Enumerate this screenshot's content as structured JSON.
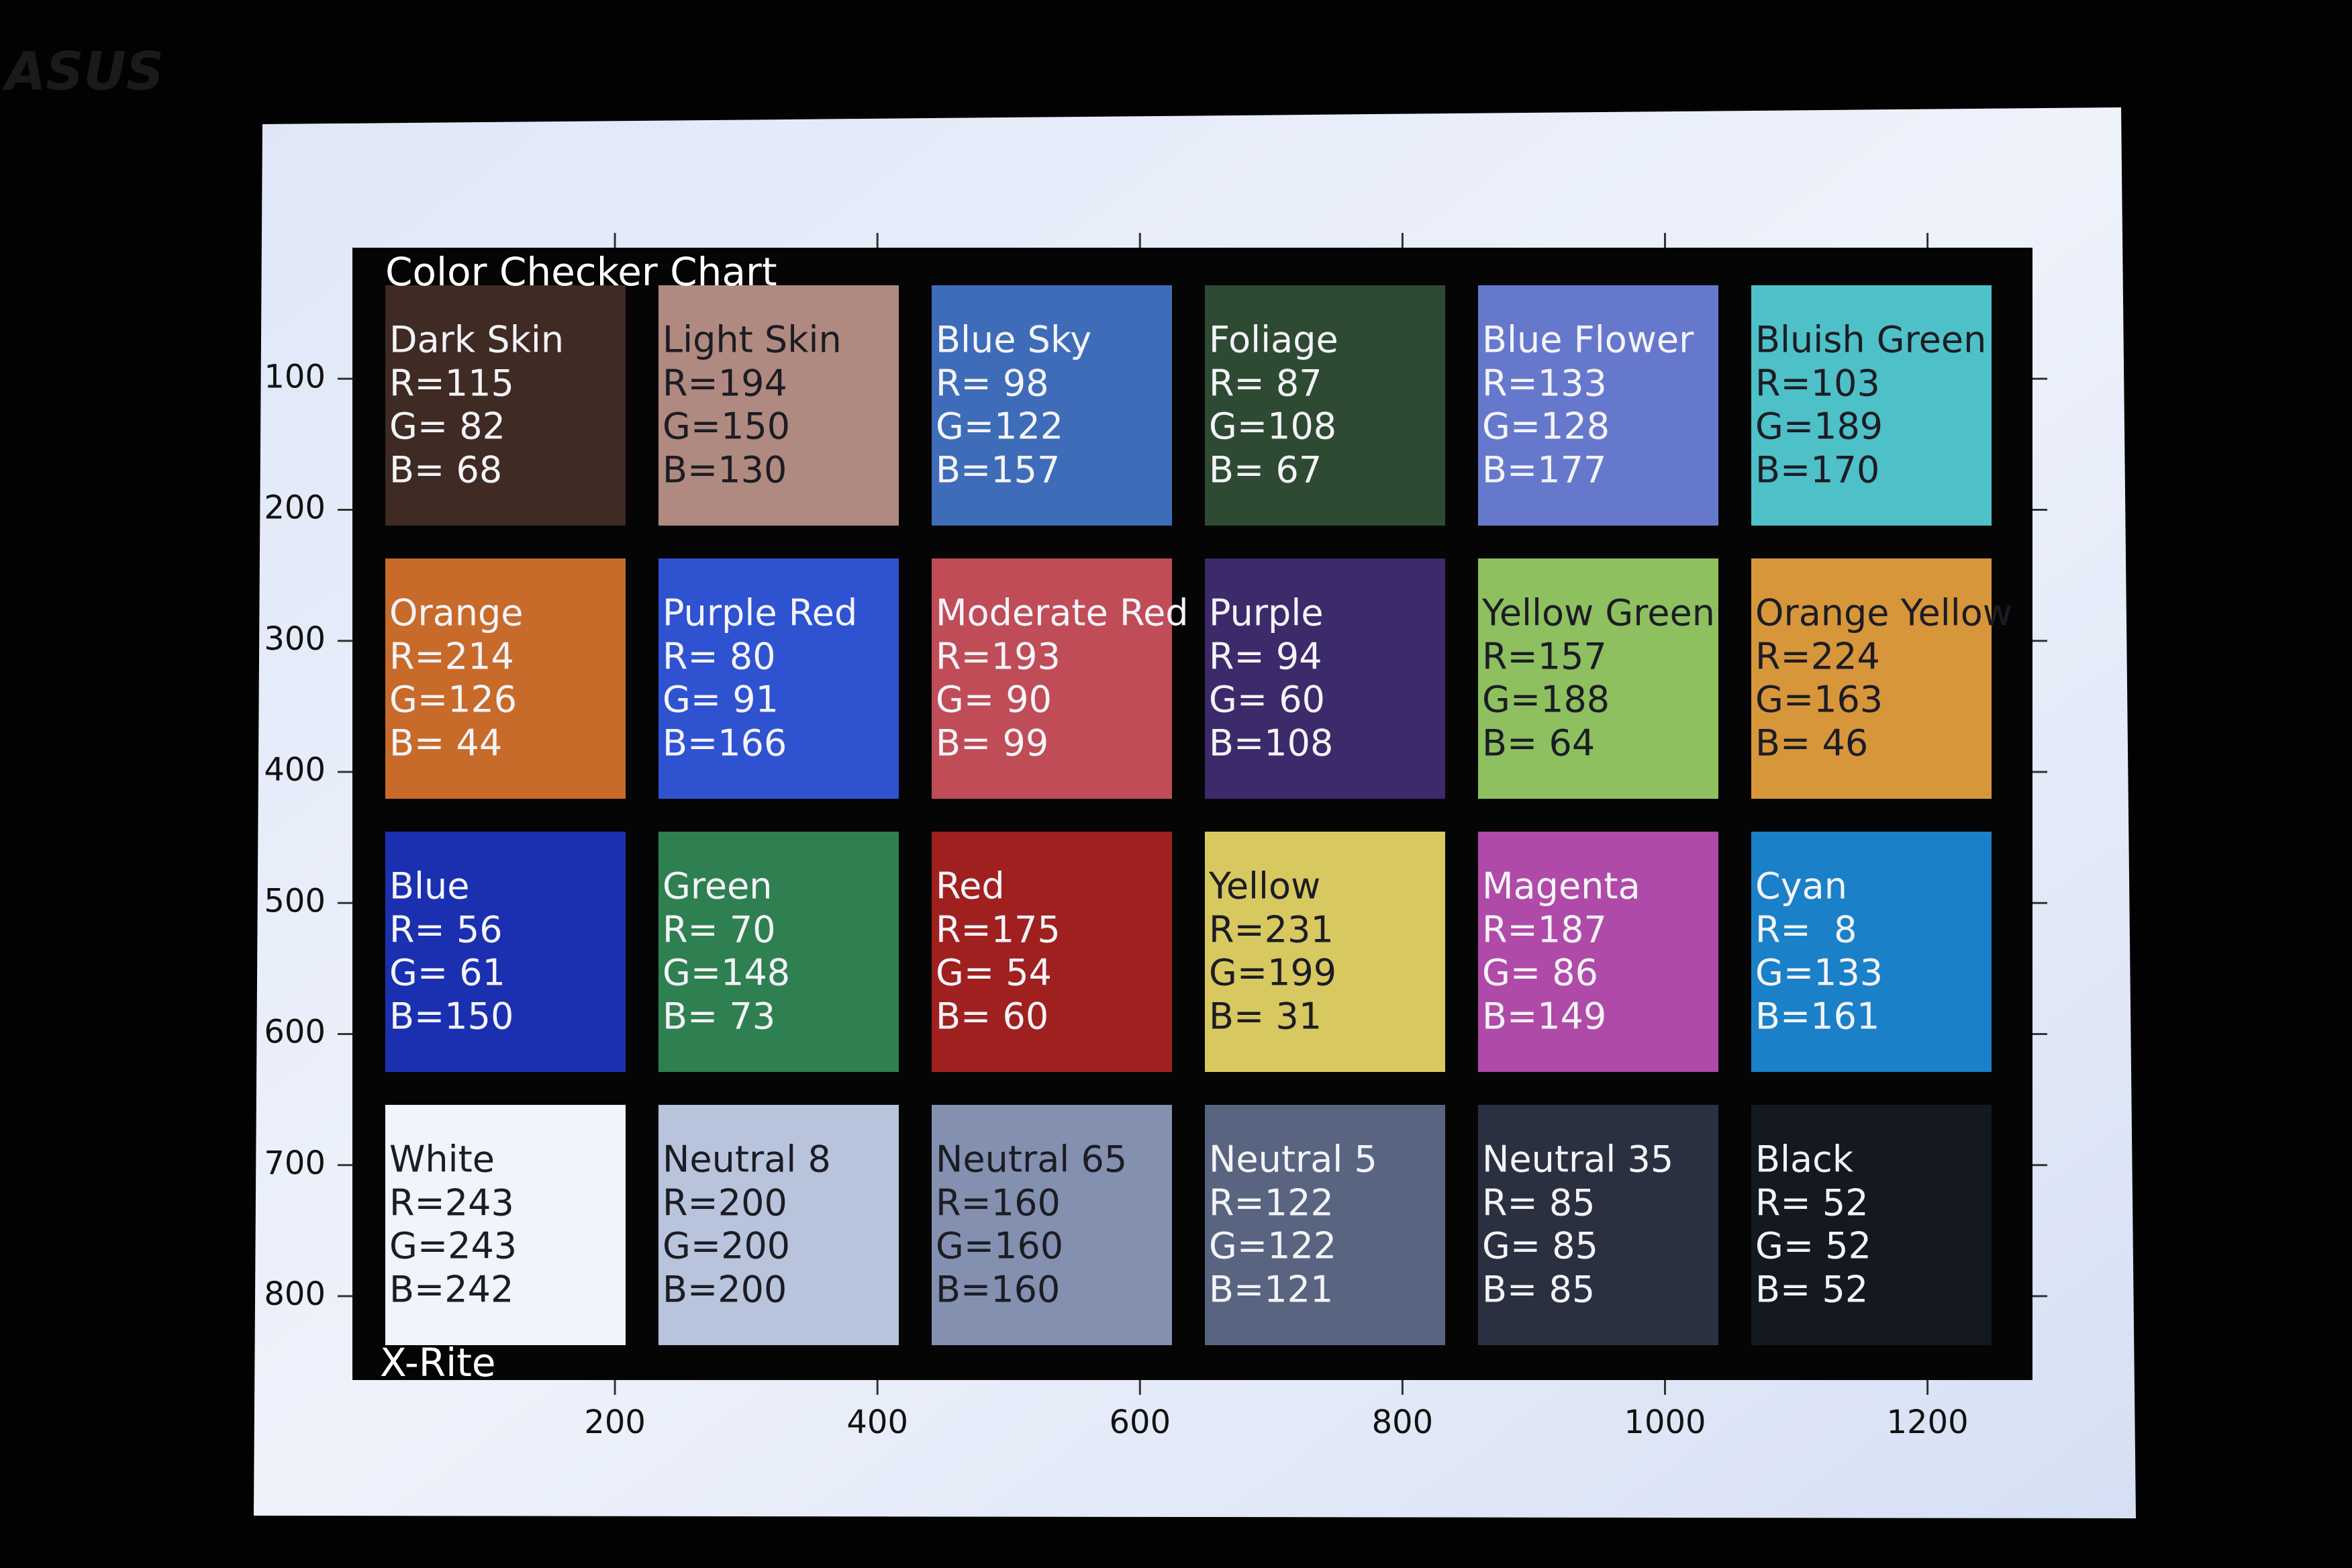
{
  "logo": "ASUS",
  "title": "Color Checker Chart",
  "footer": "X-Rite",
  "axes": {
    "xticks": [
      200,
      400,
      600,
      800,
      1000,
      1200
    ],
    "yticks": [
      100,
      200,
      300,
      400,
      500,
      600,
      700,
      800
    ]
  },
  "patches": [
    {
      "name": "Dark Skin",
      "r": "R=115",
      "g": "G= 82",
      "b": "B= 68",
      "color": "#3f2a24"
    },
    {
      "name": "Light Skin",
      "r": "R=194",
      "g": "G=150",
      "b": "B=130",
      "color": "#b08a80"
    },
    {
      "name": "Blue Sky",
      "r": "R= 98",
      "g": "G=122",
      "b": "B=157",
      "color": "#3e6cb8"
    },
    {
      "name": "Foliage",
      "r": "R= 87",
      "g": "G=108",
      "b": "B= 67",
      "color": "#2e4a33"
    },
    {
      "name": "Blue Flower",
      "r": "R=133",
      "g": "G=128",
      "b": "B=177",
      "color": "#6678cc"
    },
    {
      "name": "Bluish Green",
      "r": "R=103",
      "g": "G=189",
      "b": "B=170",
      "color": "#4ec0c8"
    },
    {
      "name": "Orange",
      "r": "R=214",
      "g": "G=126",
      "b": "B= 44",
      "color": "#c86a2a"
    },
    {
      "name": "Purple Red",
      "r": "R= 80",
      "g": "G= 91",
      "b": "B=166",
      "color": "#2e52d0"
    },
    {
      "name": "Moderate Red",
      "r": "R=193",
      "g": "G= 90",
      "b": "B= 99",
      "color": "#c04c58"
    },
    {
      "name": "Purple",
      "r": "R= 94",
      "g": "G= 60",
      "b": "B=108",
      "color": "#3c2a6a"
    },
    {
      "name": "Yellow Green",
      "r": "R=157",
      "g": "G=188",
      "b": "B= 64",
      "color": "#8ec060"
    },
    {
      "name": "Orange Yellow",
      "r": "R=224",
      "g": "G=163",
      "b": "B= 46",
      "color": "#d8963a"
    },
    {
      "name": "Blue",
      "r": "R= 56",
      "g": "G= 61",
      "b": "B=150",
      "color": "#1a30b0"
    },
    {
      "name": "Green",
      "r": "R= 70",
      "g": "G=148",
      "b": "B= 73",
      "color": "#2e8050"
    },
    {
      "name": "Red",
      "r": "R=175",
      "g": "G= 54",
      "b": "B= 60",
      "color": "#a02020"
    },
    {
      "name": "Yellow",
      "r": "R=231",
      "g": "G=199",
      "b": "B= 31",
      "color": "#d8c860"
    },
    {
      "name": "Magenta",
      "r": "R=187",
      "g": "G= 86",
      "b": "B=149",
      "color": "#b04aa8"
    },
    {
      "name": "Cyan",
      "r": "R=  8",
      "g": "G=133",
      "b": "B=161",
      "color": "#1a80c8"
    },
    {
      "name": "White",
      "r": "R=243",
      "g": "G=243",
      "b": "B=242",
      "color": "#f0f4fc"
    },
    {
      "name": "Neutral 8",
      "r": "R=200",
      "g": "G=200",
      "b": "B=200",
      "color": "#b8c4dc"
    },
    {
      "name": "Neutral 65",
      "r": "R=160",
      "g": "G=160",
      "b": "B=160",
      "color": "#8490b0"
    },
    {
      "name": "Neutral 5",
      "r": "R=122",
      "g": "G=122",
      "b": "B=121",
      "color": "#586480"
    },
    {
      "name": "Neutral 35",
      "r": "R= 85",
      "g": "G= 85",
      "b": "B= 85",
      "color": "#2a3040"
    },
    {
      "name": "Black",
      "r": "R= 52",
      "g": "G= 52",
      "b": "B= 52",
      "color": "#141820"
    }
  ]
}
